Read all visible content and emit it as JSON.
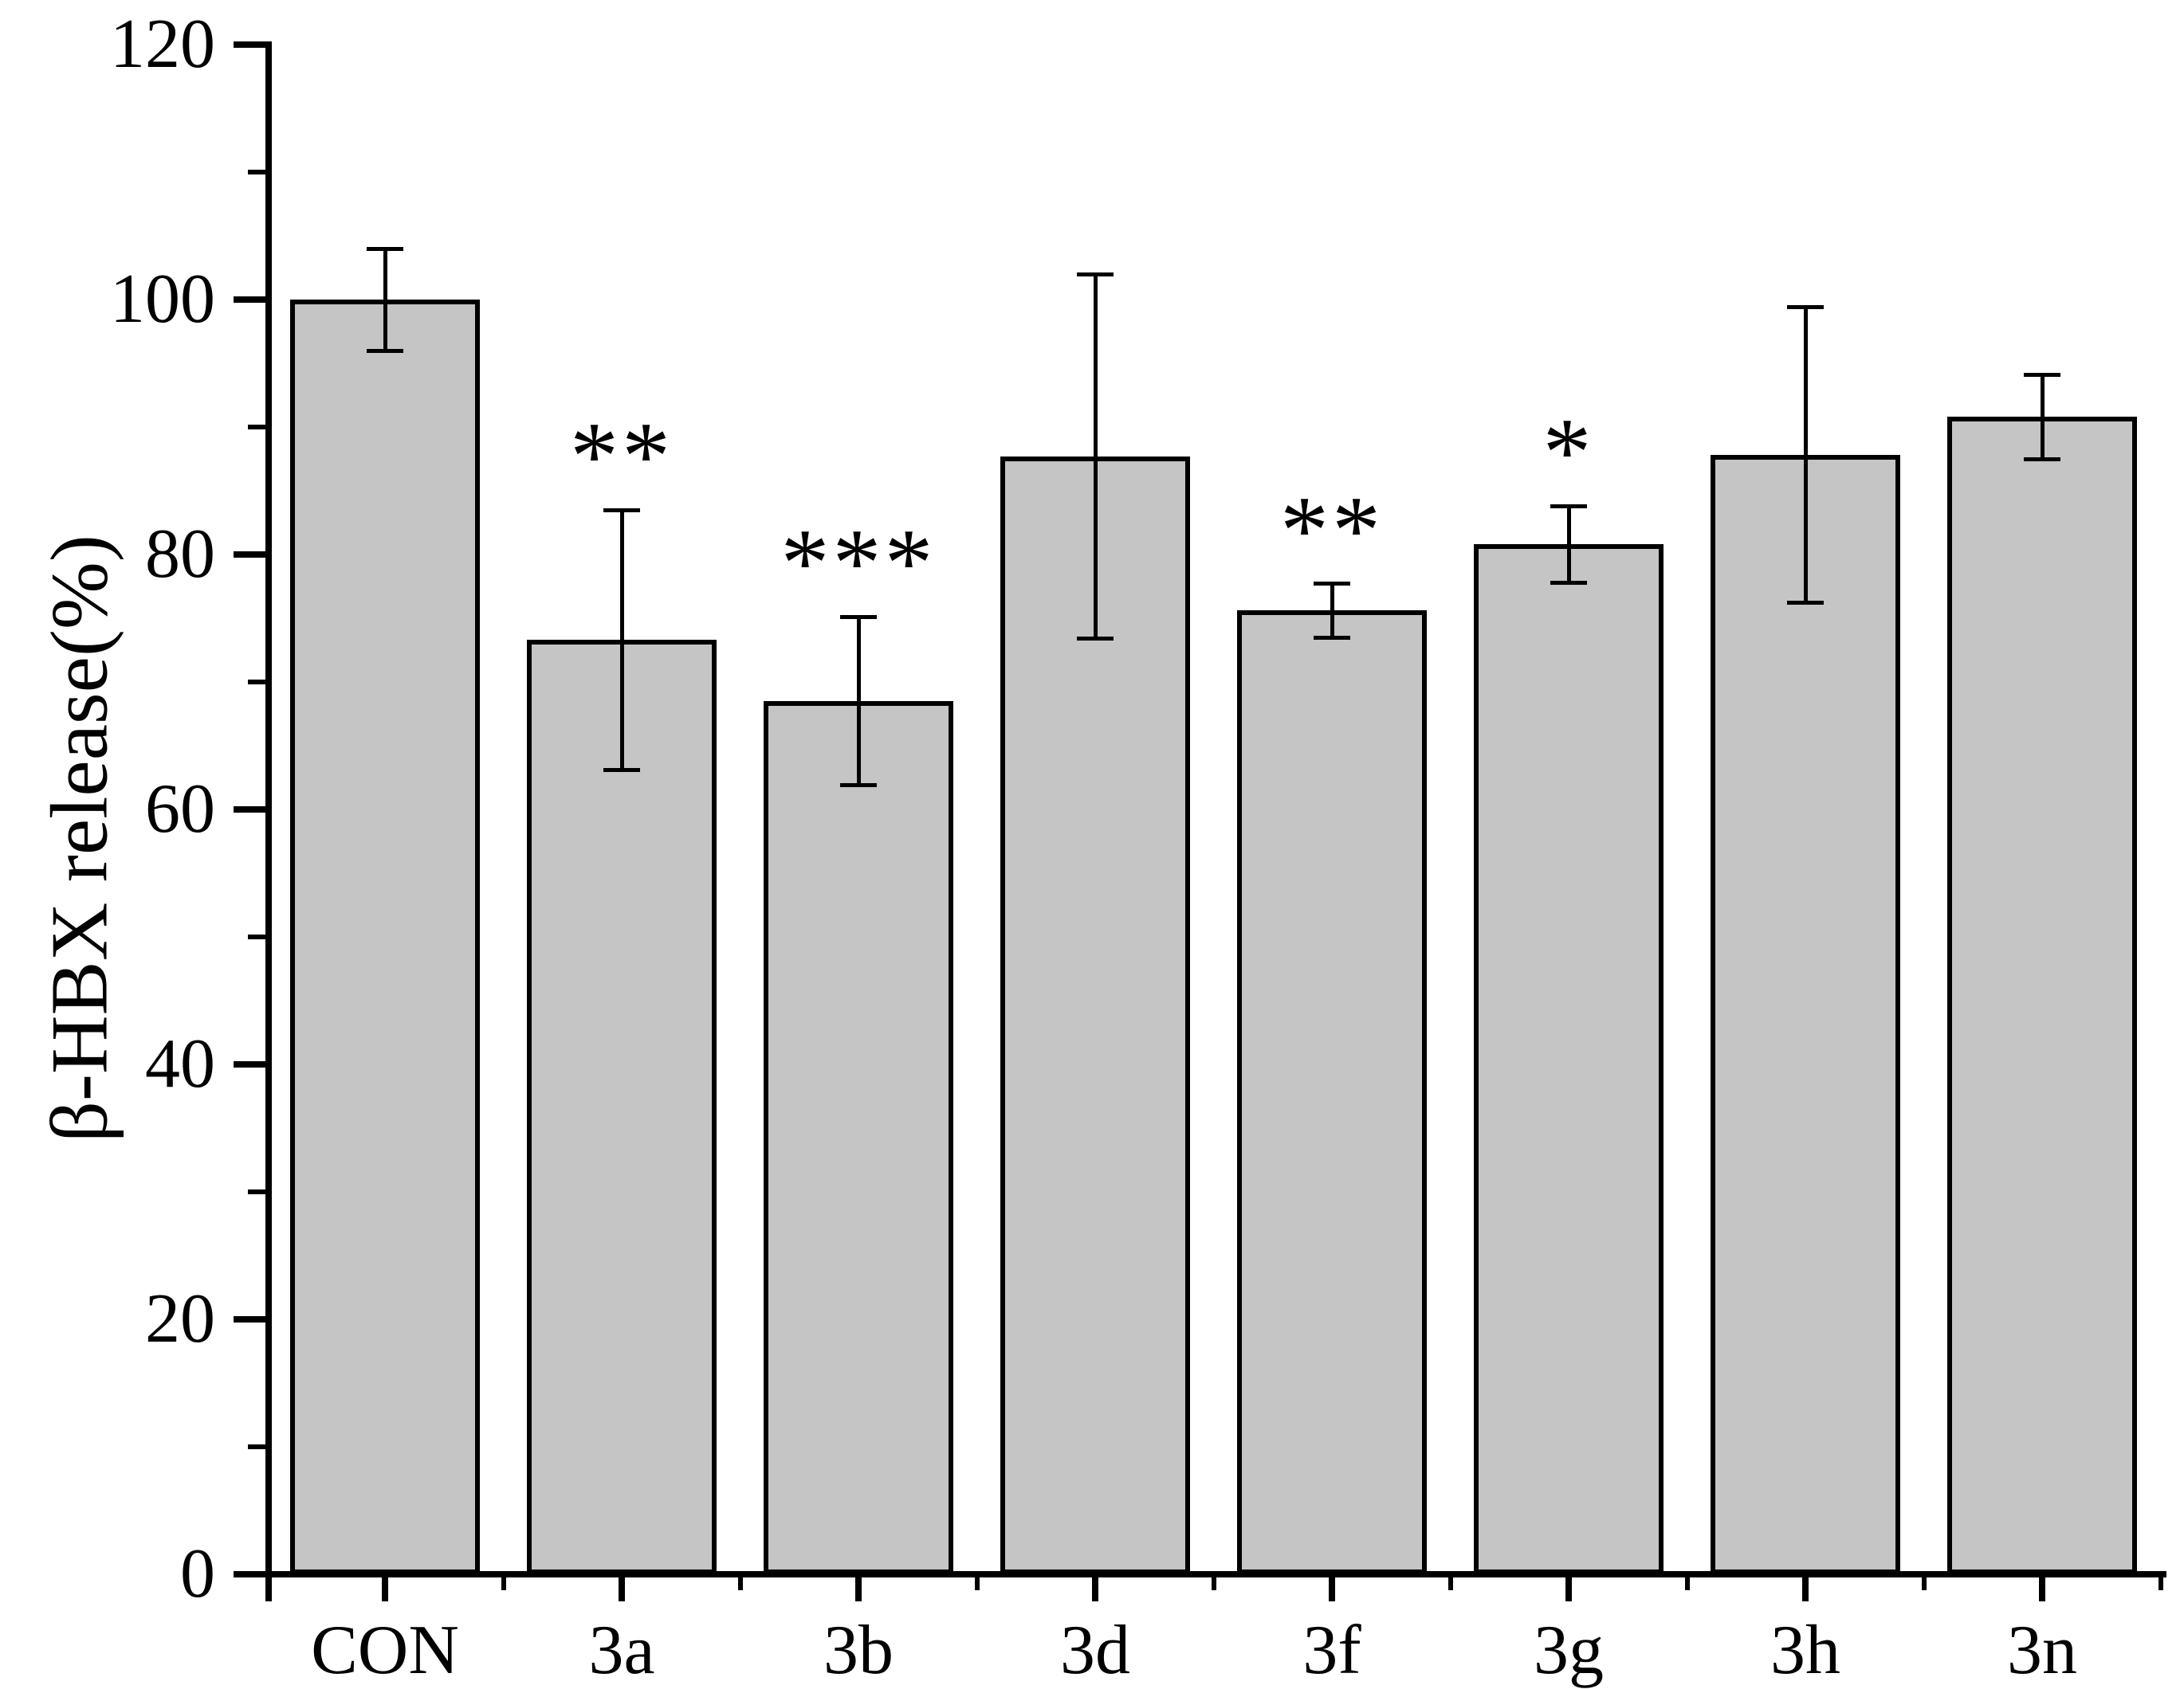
{
  "chart_data": {
    "type": "bar",
    "title": "",
    "ylabel": "β-HBX release(%)",
    "xlabel": "",
    "ylim": [
      0,
      120
    ],
    "yticks_major": [
      0,
      20,
      40,
      60,
      80,
      100,
      120
    ],
    "yticks_minor": [
      10,
      30,
      50,
      70,
      90,
      110
    ],
    "categories": [
      "CON",
      "3a",
      "3b",
      "3d",
      "3f",
      "3g",
      "3h",
      "3n"
    ],
    "values": [
      100.0,
      73.3,
      68.5,
      87.7,
      75.6,
      80.8,
      87.8,
      90.8
    ],
    "errors": [
      4.0,
      10.2,
      6.6,
      14.3,
      2.1,
      3.0,
      11.6,
      3.3
    ],
    "significance": [
      "",
      "**",
      "***",
      "",
      "**",
      "*",
      "",
      ""
    ],
    "bar_fill": "#c5c5c5",
    "edge_color": "#000000",
    "background": "#ffffff",
    "grid": false,
    "legend": null,
    "error_bars": "symmetric with caps, drawn over bars"
  }
}
